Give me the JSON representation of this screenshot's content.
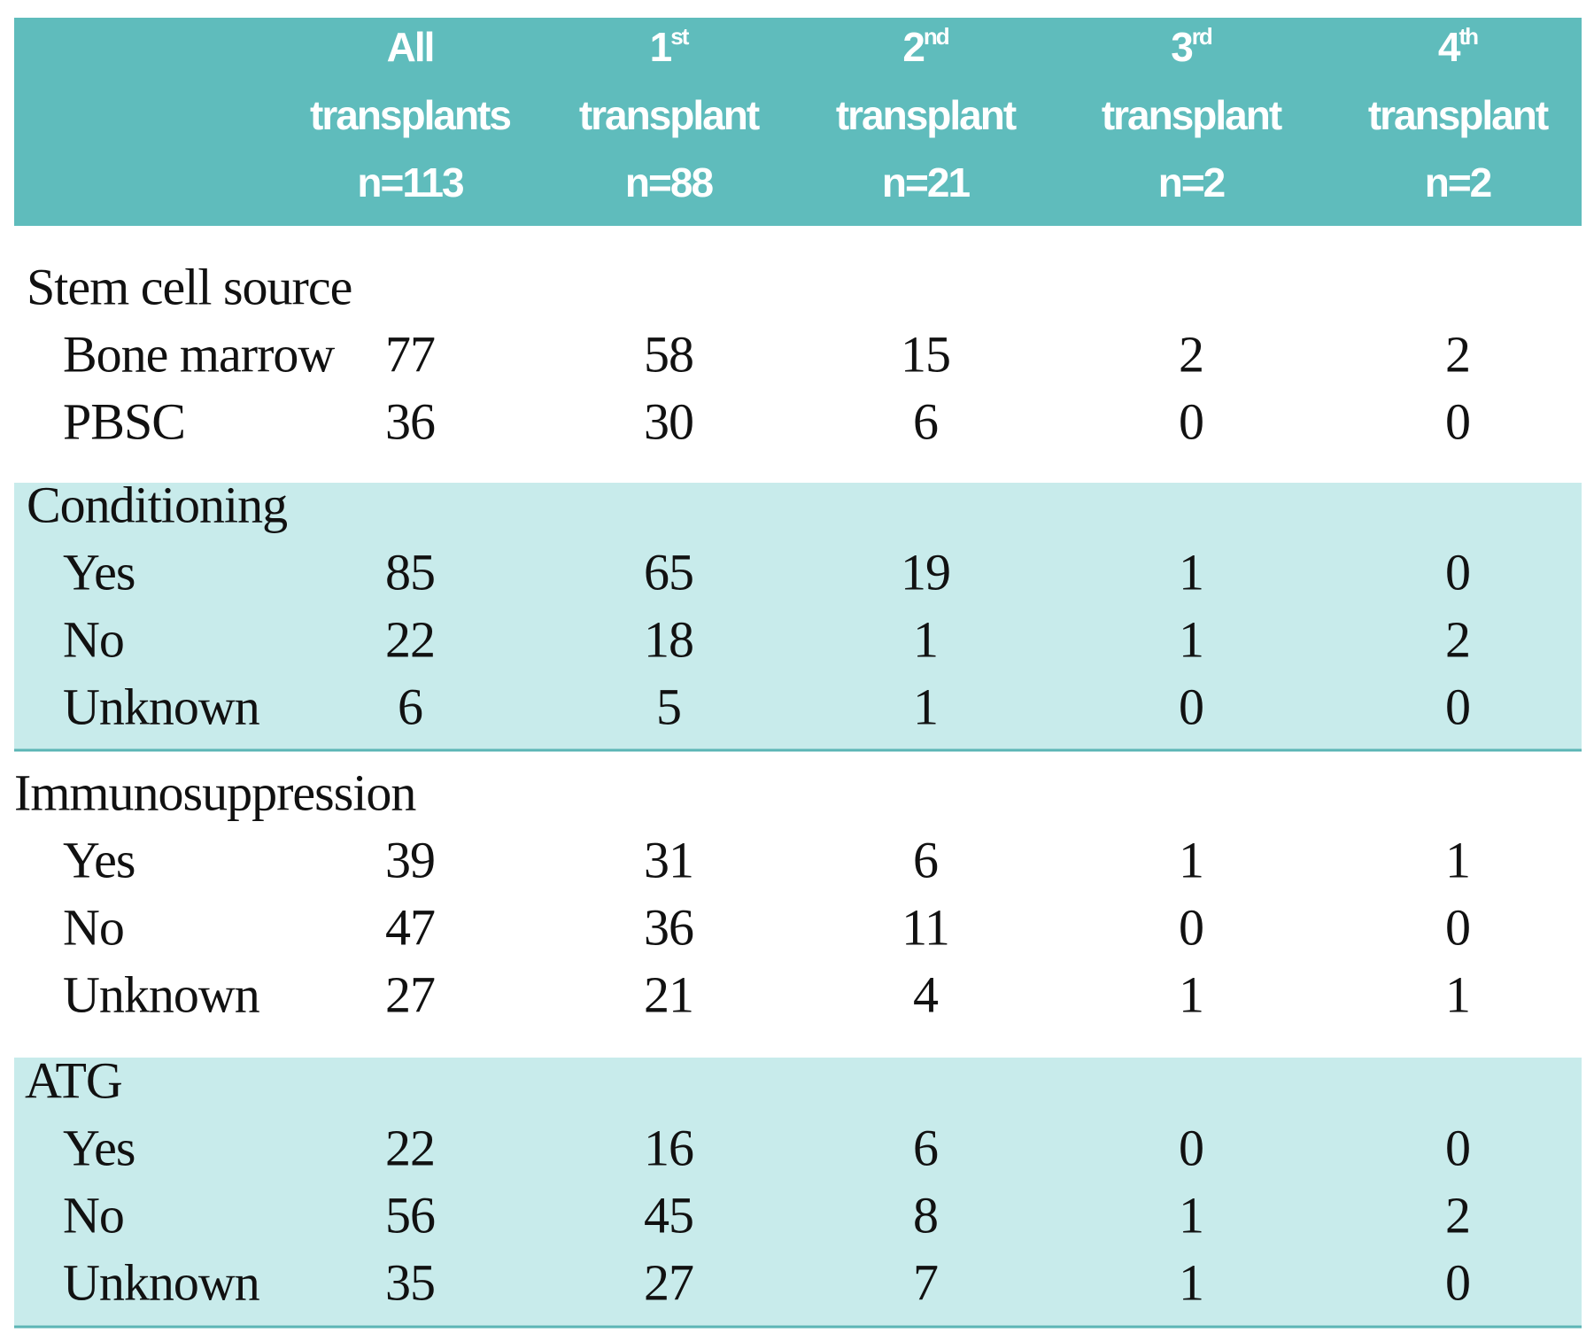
{
  "table": {
    "columns": [
      {
        "top": "All",
        "label": "transplants",
        "n": "n=113"
      },
      {
        "top": "1",
        "sup": "st",
        "label": "transplant",
        "n": "n=88"
      },
      {
        "top": "2",
        "sup": "nd",
        "label": "transplant",
        "n": "n=21"
      },
      {
        "top": "3",
        "sup": "rd",
        "label": "transplant",
        "n": "n=2"
      },
      {
        "top": "4",
        "sup": "th",
        "label": "transplant",
        "n": "n=2"
      }
    ],
    "sections": [
      {
        "title": "Stem cell source",
        "rows": [
          {
            "label": "Bone marrow",
            "values": [
              77,
              58,
              15,
              2,
              2
            ]
          },
          {
            "label": "PBSC",
            "values": [
              36,
              30,
              6,
              0,
              0
            ]
          }
        ]
      },
      {
        "title": "Conditioning",
        "rows": [
          {
            "label": "Yes",
            "values": [
              85,
              65,
              19,
              1,
              0
            ]
          },
          {
            "label": "No",
            "values": [
              22,
              18,
              1,
              1,
              2
            ]
          },
          {
            "label": "Unknown",
            "values": [
              6,
              5,
              1,
              0,
              0
            ]
          }
        ]
      },
      {
        "title": "Immunosuppression",
        "rows": [
          {
            "label": "Yes",
            "values": [
              39,
              31,
              6,
              1,
              1
            ]
          },
          {
            "label": "No",
            "values": [
              47,
              36,
              11,
              0,
              0
            ]
          },
          {
            "label": "Unknown",
            "values": [
              27,
              21,
              4,
              1,
              1
            ]
          }
        ]
      },
      {
        "title": "ATG",
        "rows": [
          {
            "label": "Yes",
            "values": [
              22,
              16,
              6,
              0,
              0
            ]
          },
          {
            "label": "No",
            "values": [
              56,
              45,
              8,
              1,
              2
            ]
          },
          {
            "label": "Unknown",
            "values": [
              35,
              27,
              7,
              1,
              0
            ]
          }
        ]
      }
    ]
  }
}
